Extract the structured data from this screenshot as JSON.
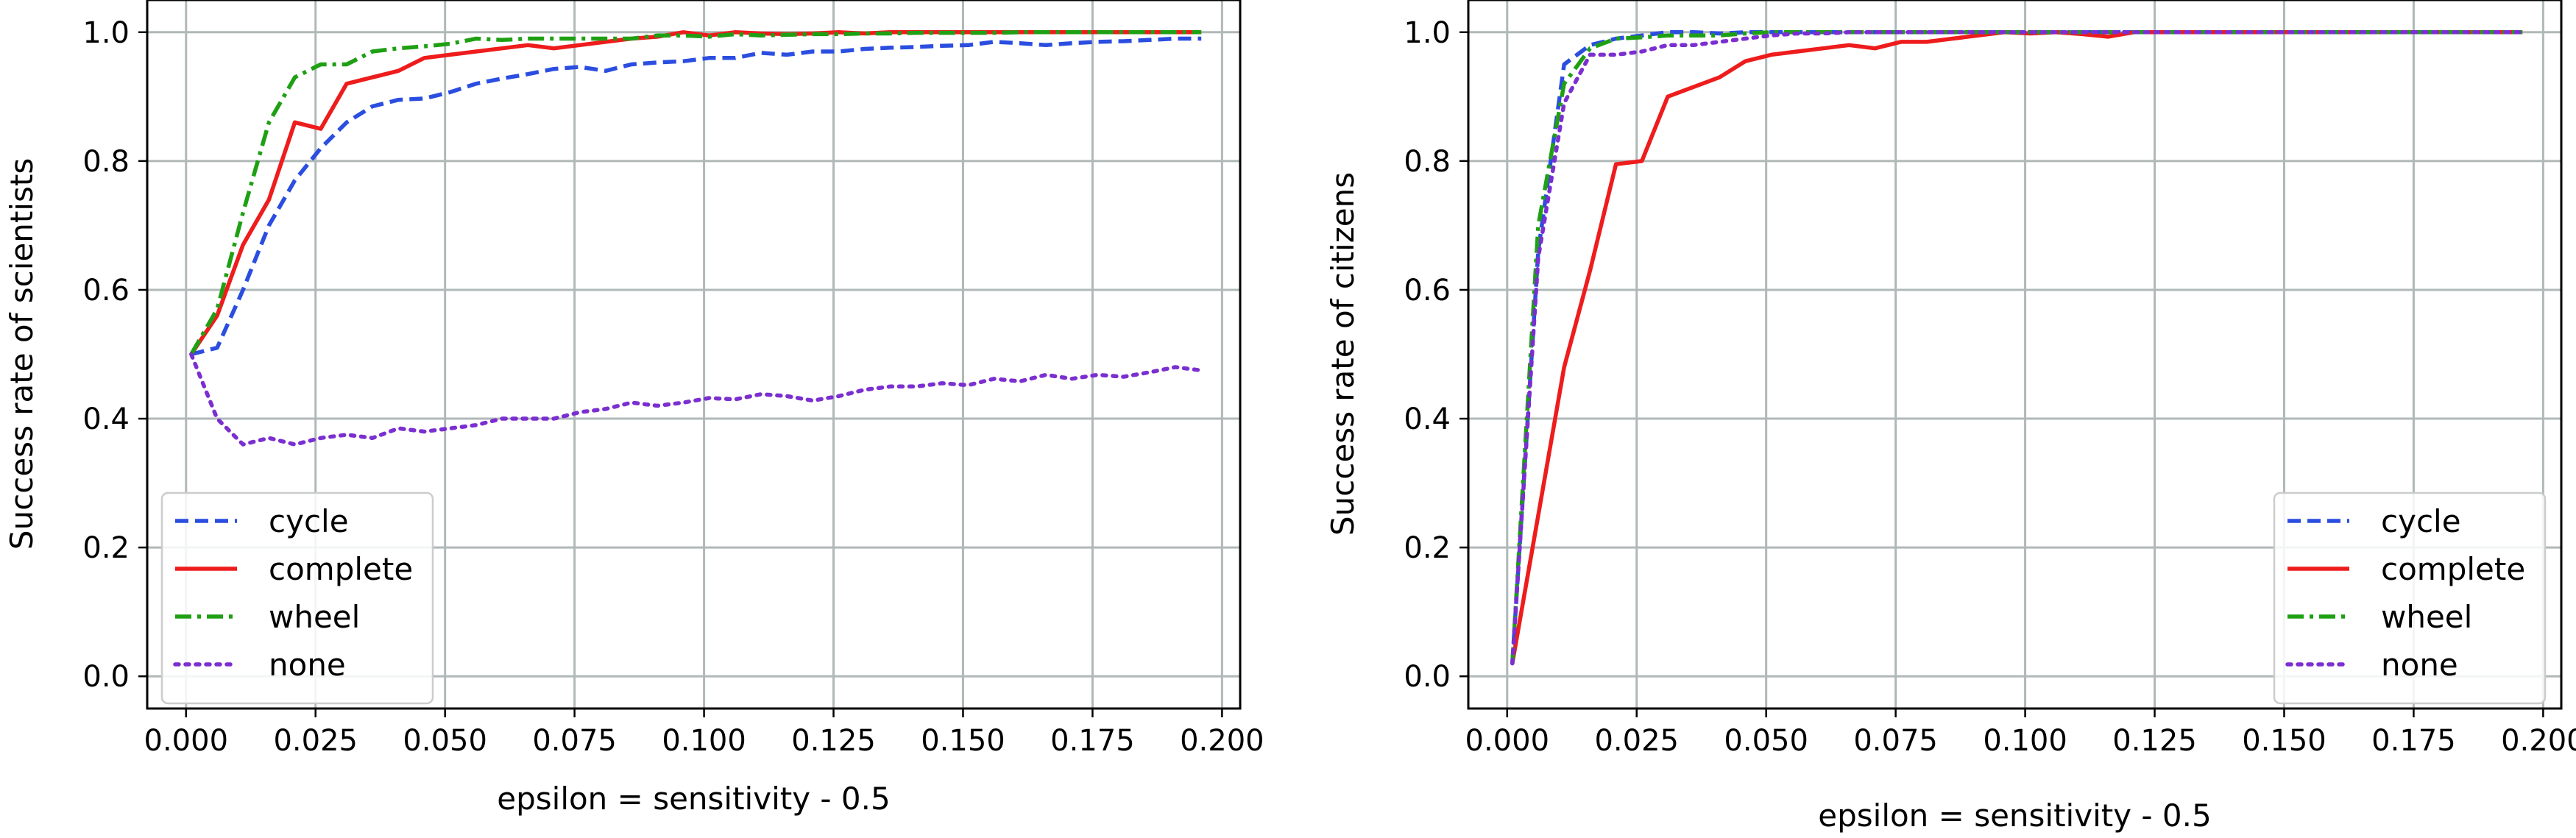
{
  "colors": {
    "grid": "#b0b8b8",
    "axis": "#000000",
    "legend_border": "#cccccc",
    "cycle": "#2b4ee0",
    "complete": "#ee1c1c",
    "wheel": "#1fa014",
    "none": "#7b2fd0"
  },
  "chart_data": [
    {
      "type": "line",
      "xlabel": "epsilon = sensitivity - 0.5",
      "ylabel": "Success rate of scientists",
      "xlim": [
        -0.0075,
        0.2035
      ],
      "ylim": [
        -0.05,
        1.05
      ],
      "xticks": [
        0.0,
        0.025,
        0.05,
        0.075,
        0.1,
        0.125,
        0.15,
        0.175,
        0.2
      ],
      "xtick_labels": [
        "0.000",
        "0.025",
        "0.050",
        "0.075",
        "0.100",
        "0.125",
        "0.150",
        "0.175",
        "0.200"
      ],
      "yticks": [
        0.0,
        0.2,
        0.4,
        0.6,
        0.8,
        1.0
      ],
      "ytick_labels": [
        "0.0",
        "0.2",
        "0.4",
        "0.6",
        "0.8",
        "1.0"
      ],
      "grid": true,
      "legend": "lower-left",
      "series": [
        {
          "name": "cycle",
          "style": "dashed",
          "x": [
            0.001,
            0.006,
            0.011,
            0.016,
            0.021,
            0.026,
            0.031,
            0.036,
            0.041,
            0.046,
            0.051,
            0.056,
            0.061,
            0.066,
            0.071,
            0.076,
            0.081,
            0.086,
            0.091,
            0.096,
            0.101,
            0.106,
            0.111,
            0.116,
            0.121,
            0.126,
            0.131,
            0.136,
            0.141,
            0.146,
            0.151,
            0.156,
            0.161,
            0.166,
            0.171,
            0.176,
            0.181,
            0.186,
            0.191,
            0.196
          ],
          "y": [
            0.5,
            0.51,
            0.6,
            0.7,
            0.77,
            0.82,
            0.86,
            0.885,
            0.895,
            0.897,
            0.907,
            0.92,
            0.928,
            0.935,
            0.943,
            0.946,
            0.94,
            0.95,
            0.953,
            0.955,
            0.96,
            0.96,
            0.968,
            0.965,
            0.97,
            0.97,
            0.974,
            0.976,
            0.977,
            0.979,
            0.98,
            0.985,
            0.983,
            0.98,
            0.983,
            0.985,
            0.986,
            0.988,
            0.99,
            0.99
          ]
        },
        {
          "name": "complete",
          "style": "solid",
          "x": [
            0.001,
            0.006,
            0.011,
            0.016,
            0.021,
            0.026,
            0.031,
            0.036,
            0.041,
            0.046,
            0.051,
            0.056,
            0.061,
            0.066,
            0.071,
            0.076,
            0.081,
            0.086,
            0.091,
            0.096,
            0.101,
            0.106,
            0.111,
            0.116,
            0.121,
            0.126,
            0.131,
            0.136,
            0.141,
            0.146,
            0.151,
            0.156,
            0.161,
            0.166,
            0.171,
            0.176,
            0.181,
            0.186,
            0.191,
            0.196
          ],
          "y": [
            0.5,
            0.56,
            0.67,
            0.74,
            0.86,
            0.85,
            0.92,
            0.93,
            0.94,
            0.96,
            0.965,
            0.97,
            0.975,
            0.98,
            0.975,
            0.98,
            0.985,
            0.99,
            0.993,
            1.0,
            0.995,
            1.0,
            0.998,
            0.997,
            0.998,
            1.0,
            0.998,
            1.0,
            1.0,
            1.0,
            1.0,
            1.0,
            1.0,
            1.0,
            1.0,
            1.0,
            1.0,
            1.0,
            1.0,
            1.0
          ]
        },
        {
          "name": "wheel",
          "style": "dashdot",
          "x": [
            0.001,
            0.006,
            0.011,
            0.016,
            0.021,
            0.026,
            0.031,
            0.036,
            0.041,
            0.046,
            0.051,
            0.056,
            0.061,
            0.066,
            0.071,
            0.076,
            0.081,
            0.086,
            0.091,
            0.096,
            0.101,
            0.106,
            0.111,
            0.116,
            0.121,
            0.126,
            0.131,
            0.136,
            0.141,
            0.146,
            0.151,
            0.156,
            0.161,
            0.166,
            0.171,
            0.176,
            0.181,
            0.186,
            0.191,
            0.196
          ],
          "y": [
            0.5,
            0.57,
            0.72,
            0.86,
            0.93,
            0.95,
            0.95,
            0.97,
            0.975,
            0.978,
            0.982,
            0.99,
            0.988,
            0.99,
            0.99,
            0.99,
            0.99,
            0.99,
            0.995,
            0.995,
            0.993,
            0.997,
            0.995,
            0.996,
            0.997,
            0.997,
            0.998,
            0.998,
            0.999,
            0.999,
            0.999,
            0.999,
            1.0,
            1.0,
            1.0,
            1.0,
            1.0,
            1.0,
            1.0,
            1.0
          ]
        },
        {
          "name": "none",
          "style": "dotted",
          "x": [
            0.001,
            0.006,
            0.011,
            0.016,
            0.021,
            0.026,
            0.031,
            0.036,
            0.041,
            0.046,
            0.051,
            0.056,
            0.061,
            0.066,
            0.071,
            0.076,
            0.081,
            0.086,
            0.091,
            0.096,
            0.101,
            0.106,
            0.111,
            0.116,
            0.121,
            0.126,
            0.131,
            0.136,
            0.141,
            0.146,
            0.151,
            0.156,
            0.161,
            0.166,
            0.171,
            0.176,
            0.181,
            0.186,
            0.191,
            0.196
          ],
          "y": [
            0.5,
            0.4,
            0.36,
            0.37,
            0.36,
            0.37,
            0.375,
            0.37,
            0.385,
            0.38,
            0.385,
            0.39,
            0.4,
            0.4,
            0.4,
            0.41,
            0.415,
            0.425,
            0.42,
            0.425,
            0.432,
            0.43,
            0.438,
            0.435,
            0.428,
            0.435,
            0.445,
            0.45,
            0.45,
            0.455,
            0.452,
            0.462,
            0.458,
            0.468,
            0.462,
            0.468,
            0.465,
            0.472,
            0.48,
            0.475
          ]
        }
      ]
    },
    {
      "type": "line",
      "xlabel": "epsilon = sensitivity - 0.5",
      "ylabel": "Success rate of citizens",
      "xlim": [
        -0.0075,
        0.2035
      ],
      "ylim": [
        -0.05,
        1.05
      ],
      "xticks": [
        0.0,
        0.025,
        0.05,
        0.075,
        0.1,
        0.125,
        0.15,
        0.175,
        0.2
      ],
      "xtick_labels": [
        "0.000",
        "0.025",
        "0.050",
        "0.075",
        "0.100",
        "0.125",
        "0.150",
        "0.175",
        "0.200"
      ],
      "yticks": [
        0.0,
        0.2,
        0.4,
        0.6,
        0.8,
        1.0
      ],
      "ytick_labels": [
        "0.0",
        "0.2",
        "0.4",
        "0.6",
        "0.8",
        "1.0"
      ],
      "grid": true,
      "legend": "lower-right",
      "series": [
        {
          "name": "cycle",
          "style": "dashed",
          "x": [
            0.001,
            0.006,
            0.011,
            0.016,
            0.021,
            0.026,
            0.031,
            0.036,
            0.041,
            0.046,
            0.051,
            0.056,
            0.061,
            0.066,
            0.071,
            0.076,
            0.081,
            0.086,
            0.091,
            0.096,
            0.101,
            0.106,
            0.111,
            0.116,
            0.121,
            0.126,
            0.131,
            0.136,
            0.141,
            0.146,
            0.151,
            0.156,
            0.161,
            0.166,
            0.171,
            0.176,
            0.181,
            0.186,
            0.191,
            0.196
          ],
          "y": [
            0.02,
            0.66,
            0.95,
            0.98,
            0.99,
            0.995,
            1.0,
            1.0,
            0.998,
            1.0,
            1.0,
            1.0,
            1.0,
            1.0,
            1.0,
            1.0,
            1.0,
            1.0,
            1.0,
            1.0,
            1.0,
            1.0,
            1.0,
            1.0,
            1.0,
            1.0,
            1.0,
            1.0,
            1.0,
            1.0,
            1.0,
            1.0,
            1.0,
            1.0,
            1.0,
            1.0,
            1.0,
            1.0,
            1.0,
            1.0
          ]
        },
        {
          "name": "complete",
          "style": "solid",
          "x": [
            0.001,
            0.006,
            0.011,
            0.016,
            0.021,
            0.026,
            0.031,
            0.036,
            0.041,
            0.046,
            0.051,
            0.056,
            0.061,
            0.066,
            0.071,
            0.076,
            0.081,
            0.086,
            0.091,
            0.096,
            0.101,
            0.106,
            0.111,
            0.116,
            0.121,
            0.126,
            0.131,
            0.136,
            0.141,
            0.146,
            0.151,
            0.156,
            0.161,
            0.166,
            0.171,
            0.176,
            0.181,
            0.186,
            0.191,
            0.196
          ],
          "y": [
            0.02,
            0.25,
            0.48,
            0.63,
            0.795,
            0.8,
            0.9,
            0.915,
            0.93,
            0.955,
            0.965,
            0.97,
            0.975,
            0.98,
            0.975,
            0.985,
            0.985,
            0.99,
            0.995,
            1.0,
            0.998,
            1.0,
            0.997,
            0.993,
            1.0,
            1.0,
            1.0,
            1.0,
            1.0,
            1.0,
            1.0,
            1.0,
            1.0,
            1.0,
            1.0,
            1.0,
            1.0,
            1.0,
            1.0,
            1.0
          ]
        },
        {
          "name": "wheel",
          "style": "dashdot",
          "x": [
            0.001,
            0.006,
            0.011,
            0.016,
            0.021,
            0.026,
            0.031,
            0.036,
            0.041,
            0.046,
            0.051,
            0.056,
            0.061,
            0.066,
            0.071,
            0.076,
            0.081,
            0.086,
            0.091,
            0.096,
            0.101,
            0.106,
            0.111,
            0.116,
            0.121,
            0.126,
            0.131,
            0.136,
            0.141,
            0.146,
            0.151,
            0.156,
            0.161,
            0.166,
            0.171,
            0.176,
            0.181,
            0.186,
            0.191,
            0.196
          ],
          "y": [
            0.02,
            0.7,
            0.92,
            0.975,
            0.99,
            0.992,
            0.995,
            0.995,
            0.995,
            0.998,
            1.0,
            1.0,
            1.0,
            1.0,
            1.0,
            1.0,
            1.0,
            1.0,
            1.0,
            1.0,
            1.0,
            1.0,
            1.0,
            1.0,
            1.0,
            1.0,
            1.0,
            1.0,
            1.0,
            1.0,
            1.0,
            1.0,
            1.0,
            1.0,
            1.0,
            1.0,
            1.0,
            1.0,
            1.0,
            1.0
          ]
        },
        {
          "name": "none",
          "style": "dotted",
          "x": [
            0.001,
            0.006,
            0.011,
            0.016,
            0.021,
            0.026,
            0.031,
            0.036,
            0.041,
            0.046,
            0.051,
            0.056,
            0.061,
            0.066,
            0.071,
            0.076,
            0.081,
            0.086,
            0.091,
            0.096,
            0.101,
            0.106,
            0.111,
            0.116,
            0.121,
            0.126,
            0.131,
            0.136,
            0.141,
            0.146,
            0.151,
            0.156,
            0.161,
            0.166,
            0.171,
            0.176,
            0.181,
            0.186,
            0.191,
            0.196
          ],
          "y": [
            0.02,
            0.65,
            0.89,
            0.965,
            0.965,
            0.97,
            0.98,
            0.98,
            0.985,
            0.99,
            0.995,
            0.998,
            0.998,
            1.0,
            1.0,
            1.0,
            1.0,
            1.0,
            1.0,
            1.0,
            1.0,
            1.0,
            1.0,
            1.0,
            1.0,
            1.0,
            1.0,
            1.0,
            1.0,
            1.0,
            1.0,
            1.0,
            1.0,
            1.0,
            1.0,
            1.0,
            1.0,
            1.0,
            1.0,
            1.0
          ]
        }
      ]
    }
  ]
}
